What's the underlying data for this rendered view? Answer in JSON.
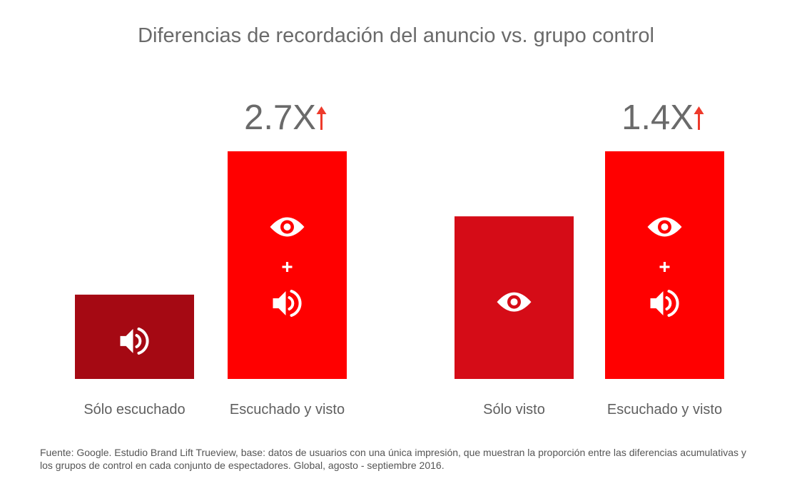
{
  "chart_data": {
    "type": "bar",
    "title": "Diferencias de recordación del anuncio vs. grupo control",
    "categories": [
      "Sólo escuchado",
      "Escuchado y visto",
      "Sólo visto",
      "Escuchado y visto"
    ],
    "groups": [
      {
        "lift_label": "2.7X",
        "bars": [
          {
            "category": "Sólo escuchado",
            "value": 1.0,
            "color": "#a50913",
            "icons": [
              "speaker-icon"
            ]
          },
          {
            "category": "Escuchado y visto",
            "value": 2.7,
            "color": "#ff0000",
            "icons": [
              "eye-icon",
              "plus-icon",
              "speaker-icon"
            ]
          }
        ]
      },
      {
        "lift_label": "1.4X",
        "bars": [
          {
            "category": "Sólo visto",
            "value": 1.0,
            "color": "#d50c17",
            "icons": [
              "eye-icon"
            ]
          },
          {
            "category": "Escuchado y visto",
            "value": 1.4,
            "color": "#ff0000",
            "icons": [
              "eye-icon",
              "plus-icon",
              "speaker-icon"
            ]
          }
        ]
      }
    ],
    "arrow_color": "#ee3a2b",
    "label_color": "#5f5f5f"
  },
  "footnote": "Fuente: Google. Estudio Brand Lift Trueview, base: datos de usuarios con una única impresión, que muestran la proporción entre las diferencias acumulativas y los grupos de control en cada conjunto de espectadores. Global, agosto - septiembre 2016."
}
